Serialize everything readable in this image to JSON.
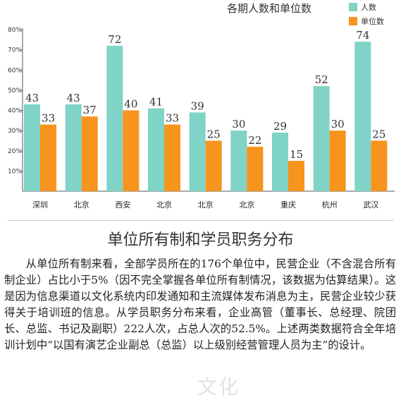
{
  "chart_data": {
    "type": "bar",
    "title": "各期人数和单位数",
    "categories": [
      "深圳",
      "北京",
      "西安",
      "北京",
      "北京",
      "北京",
      "重庆",
      "杭州",
      "武汉"
    ],
    "series": [
      {
        "name": "人数",
        "values": [
          43,
          43,
          72,
          41,
          39,
          30,
          29,
          52,
          74
        ],
        "color": "#7fd3c7"
      },
      {
        "name": "单位数",
        "values": [
          33,
          37,
          40,
          33,
          25,
          22,
          15,
          30,
          25
        ],
        "color": "#f7941d"
      }
    ],
    "ylim": [
      0,
      80
    ],
    "yticks": [
      "10%",
      "20%",
      "30%",
      "40%",
      "50%",
      "60%",
      "70%",
      "80%"
    ],
    "legend_position": "top-right",
    "grid": false
  },
  "article": {
    "title": "单位所有制和学员职务分布",
    "body": "从单位所有制来看，全部学员所在的176个单位中，民营企业（不含混合所有制企业）占比小于5%（因不完全掌握各单位所有制情况，该数据为估算结果）。这是因为信息渠道以文化系统内印发通知和主流媒体发布消息为主，民营企业较少获得关于培训班的信息。从学员职务分布来看，企业高管（董事长、总经理、院团长、总监、书记及副职）222人次，占总人次的52.5%。上述两类数据符合全年培训计划中“以国有演艺企业副总（总监）以上级别经营管理人员为主”的设计。"
  },
  "watermark": "文化"
}
